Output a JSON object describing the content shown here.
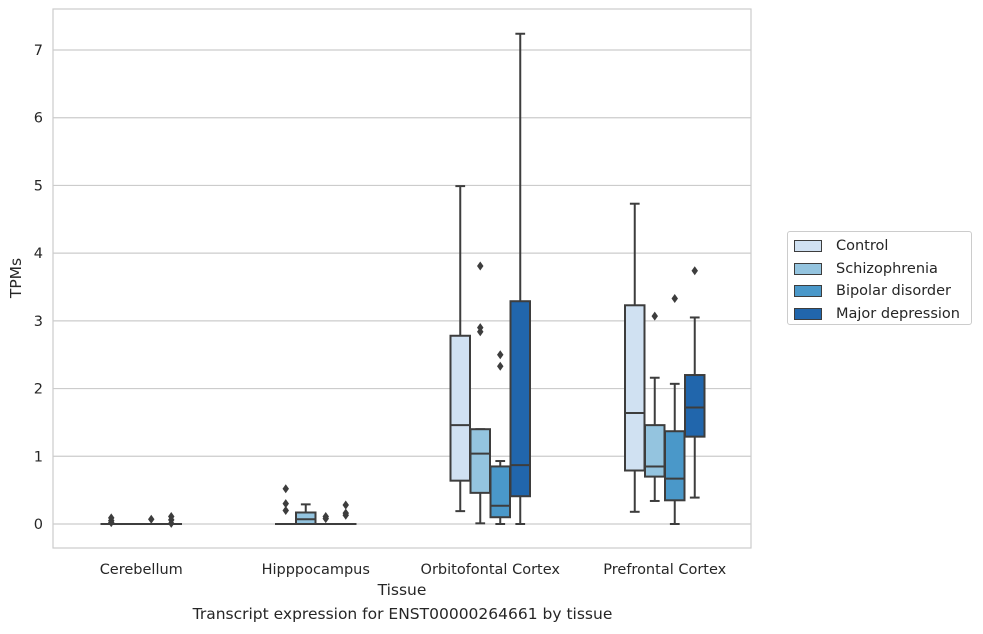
{
  "chart_data": {
    "type": "box",
    "title": "",
    "caption": "Transcript expression for ENST00000264661 by tissue",
    "xlabel": "Tissue",
    "ylabel": "TPMs",
    "ylim": [
      -0.35,
      7.6
    ],
    "yticks": [
      0,
      1,
      2,
      3,
      4,
      5,
      6,
      7
    ],
    "grid": true,
    "legend_position": "right",
    "categories": [
      "Cerebellum",
      "Hipppocampus",
      "Orbitofontal Cortex",
      "Prefrontal Cortex"
    ],
    "series": [
      {
        "name": "Control",
        "color": "#d0e1f2",
        "boxes": [
          {
            "q1": 0,
            "median": 0,
            "q3": 0,
            "whisker_low": 0,
            "whisker_high": 0,
            "outliers": [
              0.02,
              0.05,
              0.09
            ]
          },
          {
            "q1": 0,
            "median": 0,
            "q3": 0,
            "whisker_low": 0,
            "whisker_high": 0,
            "outliers": [
              0.2,
              0.3,
              0.52
            ]
          },
          {
            "q1": 0.64,
            "median": 1.46,
            "q3": 2.78,
            "whisker_low": 0.19,
            "whisker_high": 4.99,
            "outliers": []
          },
          {
            "q1": 0.79,
            "median": 1.64,
            "q3": 3.23,
            "whisker_low": 0.18,
            "whisker_high": 4.73,
            "outliers": []
          }
        ]
      },
      {
        "name": "Schizophrenia",
        "color": "#94c4df",
        "boxes": [
          {
            "q1": 0,
            "median": 0,
            "q3": 0,
            "whisker_low": 0,
            "whisker_high": 0,
            "outliers": []
          },
          {
            "q1": 0,
            "median": 0.07,
            "q3": 0.17,
            "whisker_low": 0,
            "whisker_high": 0.29,
            "outliers": []
          },
          {
            "q1": 0.46,
            "median": 1.04,
            "q3": 1.4,
            "whisker_low": 0.01,
            "whisker_high": 1.4,
            "outliers": [
              2.84,
              2.9,
              3.81
            ]
          },
          {
            "q1": 0.7,
            "median": 0.85,
            "q3": 1.46,
            "whisker_low": 0.34,
            "whisker_high": 2.16,
            "outliers": [
              3.07
            ]
          }
        ]
      },
      {
        "name": "Bipolar disorder",
        "color": "#4a98c9",
        "boxes": [
          {
            "q1": 0,
            "median": 0,
            "q3": 0,
            "whisker_low": 0,
            "whisker_high": 0,
            "outliers": [
              0.07
            ]
          },
          {
            "q1": 0,
            "median": 0,
            "q3": 0,
            "whisker_low": 0,
            "whisker_high": 0,
            "outliers": [
              0.08,
              0.11
            ]
          },
          {
            "q1": 0.1,
            "median": 0.27,
            "q3": 0.85,
            "whisker_low": 0,
            "whisker_high": 0.93,
            "outliers": [
              2.33,
              2.5
            ]
          },
          {
            "q1": 0.35,
            "median": 0.67,
            "q3": 1.37,
            "whisker_low": 0,
            "whisker_high": 2.07,
            "outliers": [
              3.33
            ]
          }
        ]
      },
      {
        "name": "Major depression",
        "color": "#2166ac",
        "boxes": [
          {
            "q1": 0,
            "median": 0,
            "q3": 0,
            "whisker_low": 0,
            "whisker_high": 0,
            "outliers": [
              0.01,
              0.06,
              0.11
            ]
          },
          {
            "q1": 0,
            "median": 0,
            "q3": 0,
            "whisker_low": 0,
            "whisker_high": 0,
            "outliers": [
              0.13,
              0.16,
              0.28
            ]
          },
          {
            "q1": 0.41,
            "median": 0.87,
            "q3": 3.29,
            "whisker_low": 0,
            "whisker_high": 7.24,
            "outliers": []
          },
          {
            "q1": 1.29,
            "median": 1.72,
            "q3": 2.2,
            "whisker_low": 0.39,
            "whisker_high": 3.05,
            "outliers": [
              3.74
            ]
          }
        ]
      }
    ]
  }
}
